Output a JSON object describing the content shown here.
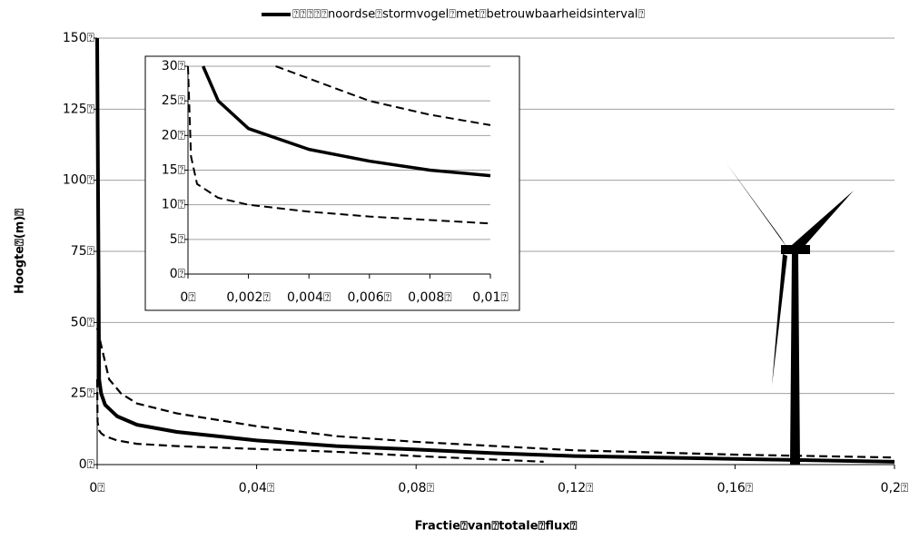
{
  "chart_data": [
    {
      "type": "line",
      "x_label": "Fractie⍰van⍰totale⍰flux⍰",
      "y_label": "Hoogte⍰(m)⍰",
      "xlim": [
        0,
        0.2
      ],
      "xticks": [
        {
          "value": 0,
          "label": "0⍰"
        },
        {
          "value": 0.04,
          "label": "0,04⍰"
        },
        {
          "value": 0.08,
          "label": "0,08⍰"
        },
        {
          "value": 0.12,
          "label": "0,12⍰"
        },
        {
          "value": 0.16,
          "label": "0,16⍰"
        },
        {
          "value": 0.2,
          "label": "0,2⍰"
        }
      ],
      "ylim": [
        0,
        150
      ],
      "yticks": [
        {
          "value": 0,
          "label": "0⍰"
        },
        {
          "value": 25,
          "label": "25⍰"
        },
        {
          "value": 50,
          "label": "50⍰"
        },
        {
          "value": 75,
          "label": "75⍰"
        },
        {
          "value": 100,
          "label": "100⍰"
        },
        {
          "value": 125,
          "label": "125⍰"
        },
        {
          "value": 150,
          "label": "150⍰"
        }
      ],
      "grid": true,
      "series": [
        {
          "name": "⍰⍰⍰⍰⍰noordse⍰stormvogel⍰met⍰betrouwbaarheidsinterval⍰",
          "color": "#000000",
          "style": "solid",
          "x": [
            0,
            0.0005,
            0.001,
            0.002,
            0.005,
            0.01,
            0.02,
            0.04,
            0.06,
            0.08,
            0.1,
            0.12,
            0.16,
            0.2
          ],
          "values": [
            150,
            30,
            25,
            21,
            17,
            14,
            11.5,
            8.5,
            6.5,
            5.3,
            4,
            3,
            2,
            1
          ]
        },
        {
          "color": "#000000",
          "style": "dashed",
          "x": [
            0,
            0.003,
            0.006,
            0.01,
            0.02,
            0.04,
            0.06,
            0.08,
            0.12,
            0.16,
            0.2
          ],
          "values": [
            48,
            30,
            25,
            21.5,
            18,
            13.5,
            10,
            8,
            5,
            3.5,
            2.5
          ]
        },
        {
          "color": "#000000",
          "style": "dashed",
          "x": [
            0,
            0.0001,
            0.0005,
            0.001,
            0.002,
            0.005,
            0.01,
            0.02,
            0.04,
            0.06,
            0.08,
            0.112
          ],
          "values": [
            30,
            15,
            12,
            11,
            10,
            8.5,
            7.3,
            6.5,
            5.5,
            4.5,
            3,
            1
          ]
        }
      ]
    },
    {
      "type": "line",
      "xlim": [
        0,
        0.01
      ],
      "xticks": [
        {
          "value": 0,
          "label": "0⍰"
        },
        {
          "value": 0.002,
          "label": "0,002⍰"
        },
        {
          "value": 0.004,
          "label": "0,004⍰"
        },
        {
          "value": 0.006,
          "label": "0,006⍰"
        },
        {
          "value": 0.008,
          "label": "0,008⍰"
        },
        {
          "value": 0.01,
          "label": "0,01⍰"
        }
      ],
      "ylim": [
        0,
        30
      ],
      "yticks": [
        {
          "value": 0,
          "label": "0⍰"
        },
        {
          "value": 5,
          "label": "5⍰"
        },
        {
          "value": 10,
          "label": "10⍰"
        },
        {
          "value": 15,
          "label": "15⍰"
        },
        {
          "value": 20,
          "label": "20⍰"
        },
        {
          "value": 25,
          "label": "25⍰"
        },
        {
          "value": 30,
          "label": "30⍰"
        }
      ],
      "grid": true,
      "series": [
        {
          "color": "#000000",
          "style": "solid",
          "x": [
            0.0005,
            0.001,
            0.002,
            0.004,
            0.006,
            0.008,
            0.01
          ],
          "values": [
            30,
            25,
            21,
            18,
            16.3,
            15,
            14.2
          ]
        },
        {
          "color": "#000000",
          "style": "dashed",
          "x": [
            0.0029,
            0.006,
            0.008,
            0.01
          ],
          "values": [
            30,
            25,
            23,
            21.5
          ]
        },
        {
          "color": "#000000",
          "style": "dashed",
          "x": [
            0,
            0.0001,
            0.0003,
            0.001,
            0.002,
            0.004,
            0.006,
            0.008,
            0.01
          ],
          "values": [
            30,
            17,
            13,
            11,
            10,
            9,
            8.3,
            7.8,
            7.3
          ]
        }
      ]
    }
  ]
}
